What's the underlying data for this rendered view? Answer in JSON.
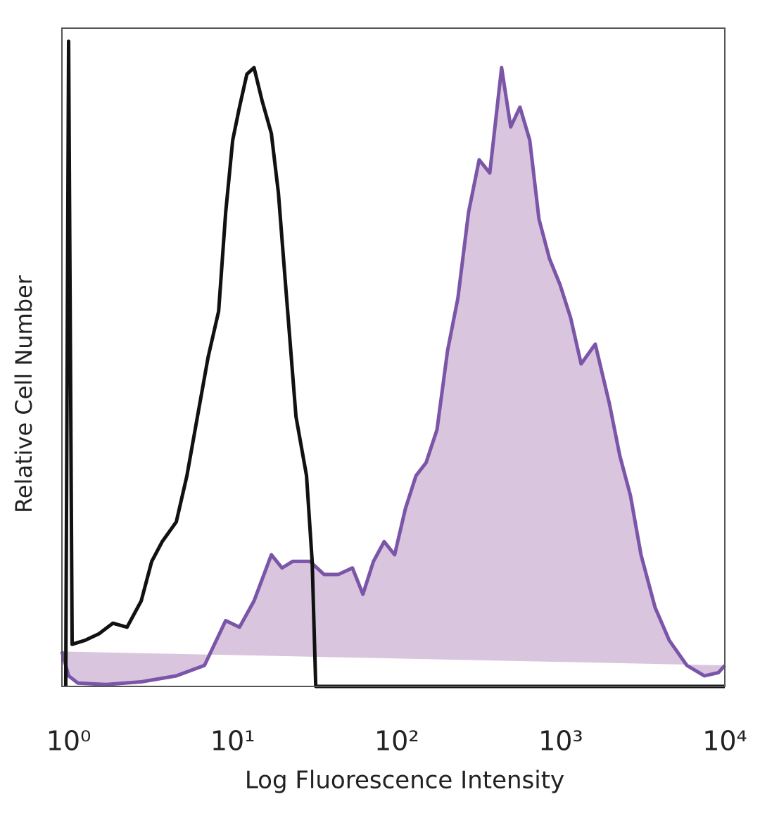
{
  "chart_data": {
    "type": "histogram-overlay",
    "xlabel": "Log Fluorescence Intensity",
    "ylabel": "Relative Cell Number",
    "log_x": true,
    "xlim": [
      0.91,
      10000
    ],
    "ylim": [
      0,
      100
    ],
    "xticks": [
      {
        "value": 1,
        "label": "10⁰"
      },
      {
        "value": 10,
        "label": "10¹"
      },
      {
        "value": 100,
        "label": "10²"
      },
      {
        "value": 1000,
        "label": "10³"
      },
      {
        "value": 10000,
        "label": "10⁴"
      }
    ],
    "grid": false,
    "series": [
      {
        "color": "#7b55a8",
        "fill": "#d9c6de",
        "x": [
          0.91,
          1,
          1.14,
          1.69,
          2.77,
          4.53,
          6.73,
          9.06,
          11.0,
          13.5,
          17.2,
          20.0,
          23.2,
          29.6,
          36.1,
          44.0,
          53.7,
          62.2,
          72.1,
          83.8,
          97.1,
          113,
          131,
          151,
          176,
          204,
          236,
          274,
          318,
          369,
          436,
          495,
          564,
          647,
          736,
          853,
          990,
          1148,
          1331,
          1622,
          1977,
          2294,
          2660,
          3084,
          3758,
          4581,
          5864,
          7510,
          9149,
          10000
        ],
        "values": [
          5.3,
          1.6,
          0.5,
          0.3,
          0.7,
          1.6,
          3.2,
          10,
          9,
          13,
          20,
          18,
          19,
          19,
          17,
          17,
          18,
          14,
          19,
          22,
          20,
          27,
          32,
          34,
          39,
          51,
          59,
          72,
          80,
          78,
          94,
          85,
          88,
          83,
          71,
          65,
          61,
          56,
          49,
          52,
          43,
          35,
          29,
          20,
          12,
          7,
          3.2,
          1.6,
          2.1,
          3.2
        ]
      },
      {
        "color": "#111111",
        "x": [
          0.96,
          1,
          1.05,
          1.26,
          1.53,
          1.86,
          2.27,
          2.77,
          3.21,
          3.72,
          4.53,
          5.26,
          6.1,
          7.08,
          8.21,
          9.06,
          10.0,
          11.0,
          12.2,
          13.5,
          15.1,
          17.2,
          19.0,
          21.0,
          24.3,
          28.2,
          30.5,
          32.1,
          10000
        ],
        "values": [
          0,
          98,
          6.4,
          7,
          8,
          9.6,
          9,
          13,
          19,
          22,
          25,
          32,
          41,
          50,
          57,
          72,
          83,
          88,
          93,
          94,
          89,
          84,
          75,
          61,
          41,
          32,
          19,
          0,
          0
        ]
      }
    ]
  }
}
